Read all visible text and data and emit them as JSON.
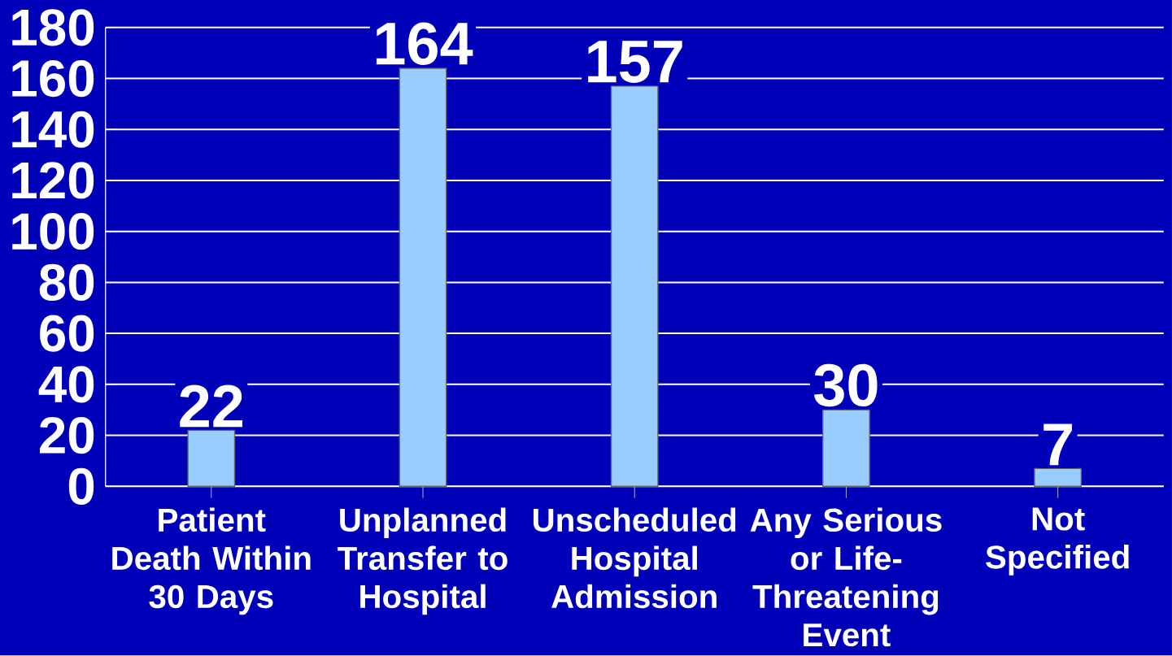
{
  "chart_data": {
    "type": "bar",
    "categories": [
      "Patient Death Within 30 Days",
      "Unplanned Transfer to Hospital",
      "Unscheduled Hospital Admission",
      "Any Serious or Life-Threatening Event",
      "Not Specified"
    ],
    "values": [
      22,
      164,
      157,
      30,
      7
    ],
    "color": "#99ccff",
    "ylim": [
      0,
      180
    ],
    "yticks": [
      0,
      20,
      40,
      60,
      80,
      100,
      120,
      140,
      160,
      180
    ],
    "grid": "y",
    "data_labels": true
  }
}
